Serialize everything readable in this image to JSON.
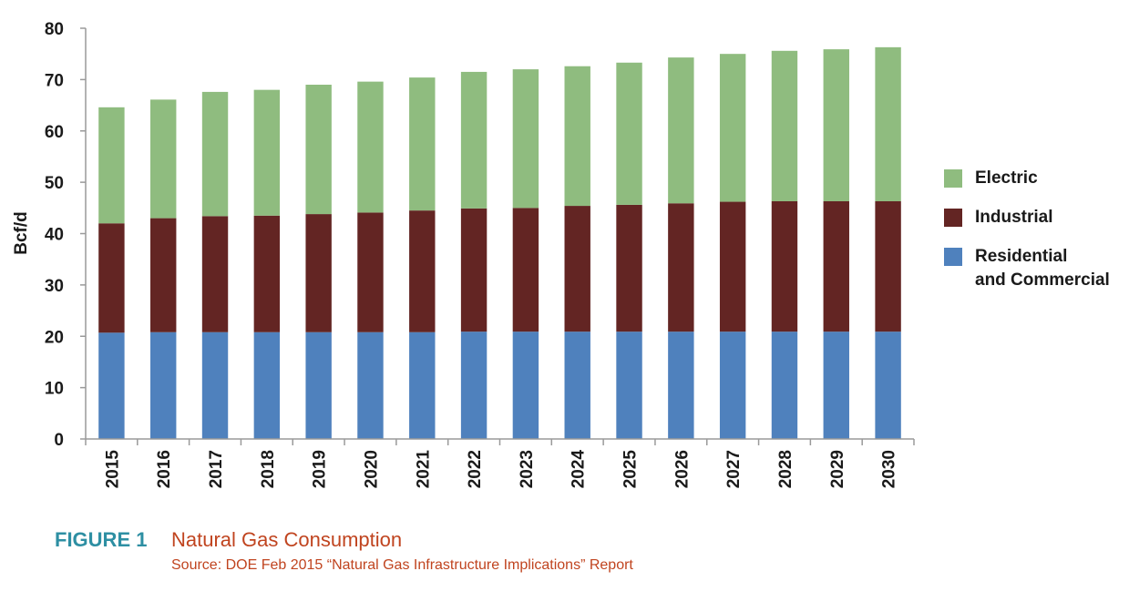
{
  "chart_data": {
    "type": "bar",
    "stacked": true,
    "categories": [
      "2015",
      "2016",
      "2017",
      "2018",
      "2019",
      "2020",
      "2021",
      "2022",
      "2023",
      "2024",
      "2025",
      "2026",
      "2027",
      "2028",
      "2029",
      "2030"
    ],
    "series": [
      {
        "name": "Residential and Commercial",
        "color": "#4f81bd",
        "values": [
          20.7,
          20.8,
          20.8,
          20.8,
          20.8,
          20.8,
          20.8,
          20.9,
          20.9,
          20.9,
          20.9,
          20.9,
          20.9,
          20.9,
          20.9,
          20.9
        ]
      },
      {
        "name": "Industrial",
        "color": "#632523",
        "values": [
          21.3,
          22.2,
          22.6,
          22.7,
          23.0,
          23.3,
          23.7,
          24.0,
          24.1,
          24.5,
          24.7,
          25.0,
          25.3,
          25.4,
          25.4,
          25.4
        ]
      },
      {
        "name": "Electric",
        "color": "#8fbc7f",
        "values": [
          22.6,
          23.1,
          24.2,
          24.5,
          25.2,
          25.5,
          25.9,
          26.6,
          27.0,
          27.2,
          27.7,
          28.4,
          28.8,
          29.3,
          29.6,
          30.0
        ]
      }
    ],
    "ylabel": "Bcf/d",
    "xlabel": "",
    "ylim": [
      0,
      80
    ],
    "yticks": [
      "0",
      "10",
      "20",
      "30",
      "40",
      "50",
      "60",
      "70",
      "80"
    ],
    "grid": false,
    "legend_position": "right"
  },
  "legend": {
    "electric": "Electric",
    "industrial": "Industrial",
    "residential_line1": "Residential",
    "residential_line2": "and Commercial"
  },
  "caption": {
    "label": "FIGURE 1",
    "title": "Natural Gas Consumption",
    "source": "Source: DOE Feb 2015 “Natural Gas Infrastructure Implications” Report"
  }
}
